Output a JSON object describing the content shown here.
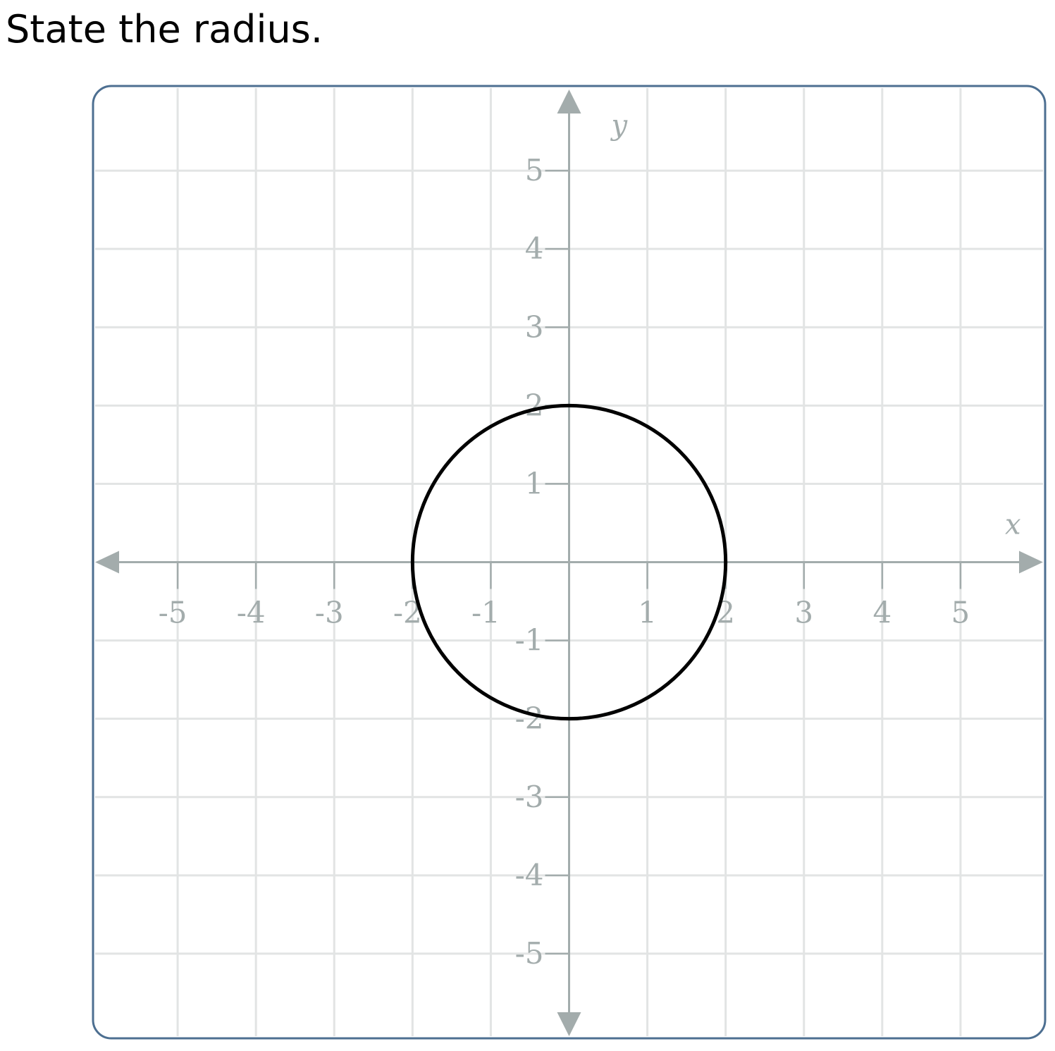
{
  "question": {
    "text": "State the radius."
  },
  "colors": {
    "frame": "#4d6f91",
    "grid": "#e2e4e4",
    "axis": "#a3acac",
    "circle": "#000000",
    "label": "#a3acac"
  },
  "chart_data": {
    "type": "circle-plot",
    "xlabel": "x",
    "ylabel": "y",
    "xlim": [
      -6,
      6
    ],
    "ylim": [
      -6,
      6
    ],
    "grid": true,
    "x_ticks": [
      {
        "value": -5,
        "label": "-5"
      },
      {
        "value": -4,
        "label": "-4"
      },
      {
        "value": -3,
        "label": "-3"
      },
      {
        "value": -2,
        "label": "-2"
      },
      {
        "value": -1,
        "label": "-1"
      },
      {
        "value": 1,
        "label": "1"
      },
      {
        "value": 2,
        "label": "2"
      },
      {
        "value": 3,
        "label": "3"
      },
      {
        "value": 4,
        "label": "4"
      },
      {
        "value": 5,
        "label": "5"
      }
    ],
    "y_ticks": [
      {
        "value": 5,
        "label": "5"
      },
      {
        "value": 4,
        "label": "4"
      },
      {
        "value": 3,
        "label": "3"
      },
      {
        "value": 2,
        "label": "2"
      },
      {
        "value": 1,
        "label": "1"
      },
      {
        "value": -1,
        "label": "-1"
      },
      {
        "value": -2,
        "label": "-2"
      },
      {
        "value": -3,
        "label": "-3"
      },
      {
        "value": -4,
        "label": "-4"
      },
      {
        "value": -5,
        "label": "-5"
      }
    ],
    "circle": {
      "center": [
        0,
        0
      ],
      "radius": 2
    }
  }
}
